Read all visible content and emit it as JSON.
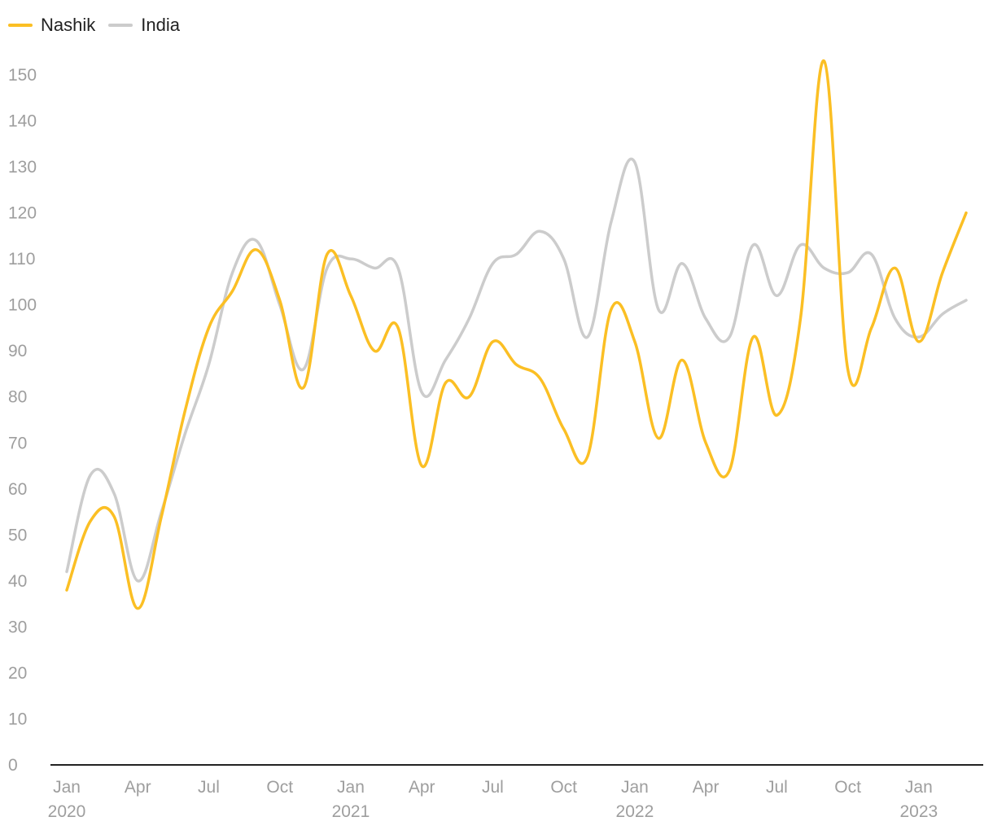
{
  "chart_data": {
    "type": "line",
    "title": "",
    "xlabel": "",
    "ylabel": "",
    "ylim": [
      0,
      150
    ],
    "y_ticks": [
      0,
      10,
      20,
      30,
      40,
      50,
      60,
      70,
      80,
      90,
      100,
      110,
      120,
      130,
      140,
      150
    ],
    "grid": false,
    "legend_position": "top-left",
    "x": [
      "2020-01",
      "2020-02",
      "2020-03",
      "2020-04",
      "2020-05",
      "2020-06",
      "2020-07",
      "2020-08",
      "2020-09",
      "2020-10",
      "2020-11",
      "2020-12",
      "2021-01",
      "2021-02",
      "2021-03",
      "2021-04",
      "2021-05",
      "2021-06",
      "2021-07",
      "2021-08",
      "2021-09",
      "2021-10",
      "2021-11",
      "2021-12",
      "2022-01",
      "2022-02",
      "2022-03",
      "2022-04",
      "2022-05",
      "2022-06",
      "2022-07",
      "2022-08",
      "2022-09",
      "2022-10",
      "2022-11",
      "2022-12",
      "2023-01",
      "2023-02",
      "2023-03"
    ],
    "x_ticks": [
      {
        "x": "2020-01",
        "label": "Jan",
        "year": "2020"
      },
      {
        "x": "2020-04",
        "label": "Apr",
        "year": ""
      },
      {
        "x": "2020-07",
        "label": "Jul",
        "year": ""
      },
      {
        "x": "2020-10",
        "label": "Oct",
        "year": ""
      },
      {
        "x": "2021-01",
        "label": "Jan",
        "year": "2021"
      },
      {
        "x": "2021-04",
        "label": "Apr",
        "year": ""
      },
      {
        "x": "2021-07",
        "label": "Jul",
        "year": ""
      },
      {
        "x": "2021-10",
        "label": "Oct",
        "year": ""
      },
      {
        "x": "2022-01",
        "label": "Jan",
        "year": "2022"
      },
      {
        "x": "2022-04",
        "label": "Apr",
        "year": ""
      },
      {
        "x": "2022-07",
        "label": "Jul",
        "year": ""
      },
      {
        "x": "2022-10",
        "label": "Oct",
        "year": ""
      },
      {
        "x": "2023-01",
        "label": "Jan",
        "year": "2023"
      }
    ],
    "series": [
      {
        "name": "Nashik",
        "color": "#fbbf24",
        "values": [
          38,
          53,
          54,
          34,
          54,
          77,
          95,
          103,
          112,
          101,
          82,
          111,
          102,
          90,
          95,
          65,
          83,
          80,
          92,
          87,
          84,
          73,
          67,
          99,
          92,
          71,
          88,
          70,
          64,
          93,
          76,
          97,
          153,
          86,
          95,
          108,
          92,
          107,
          120
        ]
      },
      {
        "name": "India",
        "color": "#cccccc",
        "values": [
          42,
          63,
          59,
          40,
          55,
          72,
          87,
          107,
          114,
          100,
          86,
          108,
          110,
          108,
          108,
          81,
          88,
          97,
          109,
          111,
          116,
          110,
          93,
          118,
          131,
          99,
          109,
          97,
          93,
          113,
          102,
          113,
          108,
          107,
          111,
          97,
          93,
          98,
          101
        ]
      }
    ]
  }
}
